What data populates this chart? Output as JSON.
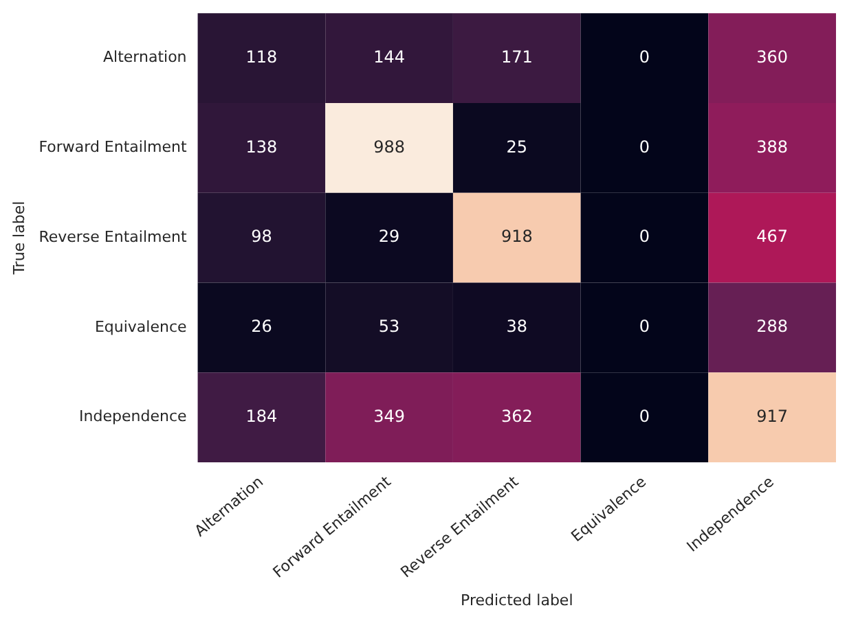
{
  "chart_data": {
    "type": "heatmap",
    "xlabel": "Predicted label",
    "ylabel": "True label",
    "categories": [
      "Alternation",
      "Forward Entailment",
      "Reverse Entailment",
      "Equivalence",
      "Independence"
    ],
    "y_categories": [
      "Alternation",
      "Forward Entailment",
      "Reverse Entailment",
      "Equivalence",
      "Independence"
    ],
    "cells": [
      [
        118,
        144,
        171,
        0,
        360
      ],
      [
        138,
        988,
        25,
        0,
        388
      ],
      [
        98,
        29,
        918,
        0,
        467
      ],
      [
        26,
        53,
        38,
        0,
        288
      ],
      [
        184,
        349,
        362,
        0,
        917
      ]
    ],
    "data_labels": true
  }
}
